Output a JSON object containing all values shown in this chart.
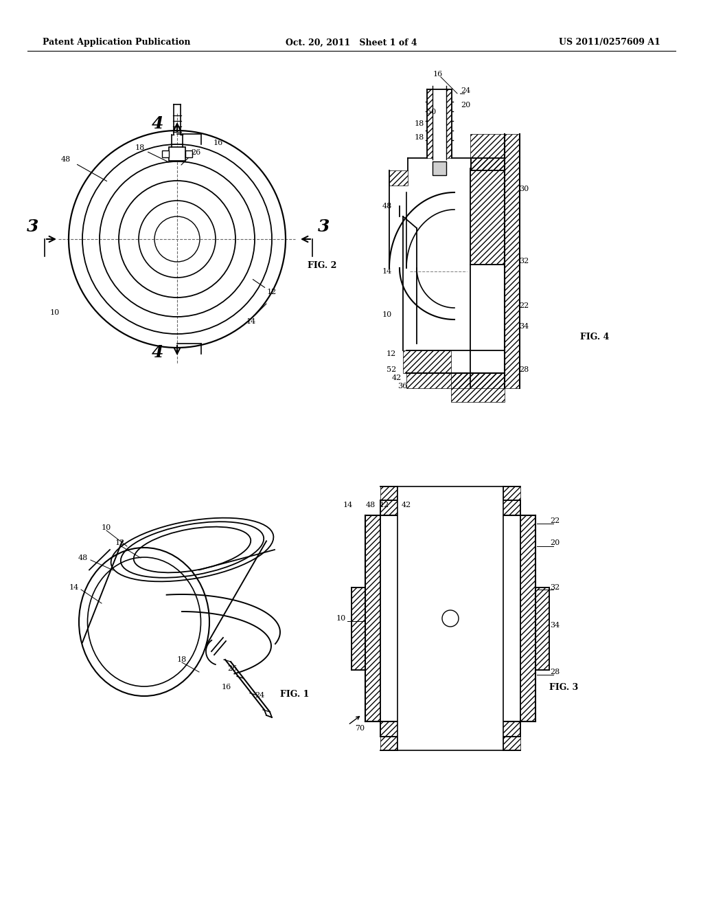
{
  "bg_color": "#ffffff",
  "header": {
    "left": "Patent Application Publication",
    "center": "Oct. 20, 2011   Sheet 1 of 4",
    "right": "US 2011/0257609 A1"
  },
  "fig_labels": {
    "fig1": "FIG. 1",
    "fig2": "FIG. 2",
    "fig3": "FIG. 3",
    "fig4": "FIG. 4"
  }
}
